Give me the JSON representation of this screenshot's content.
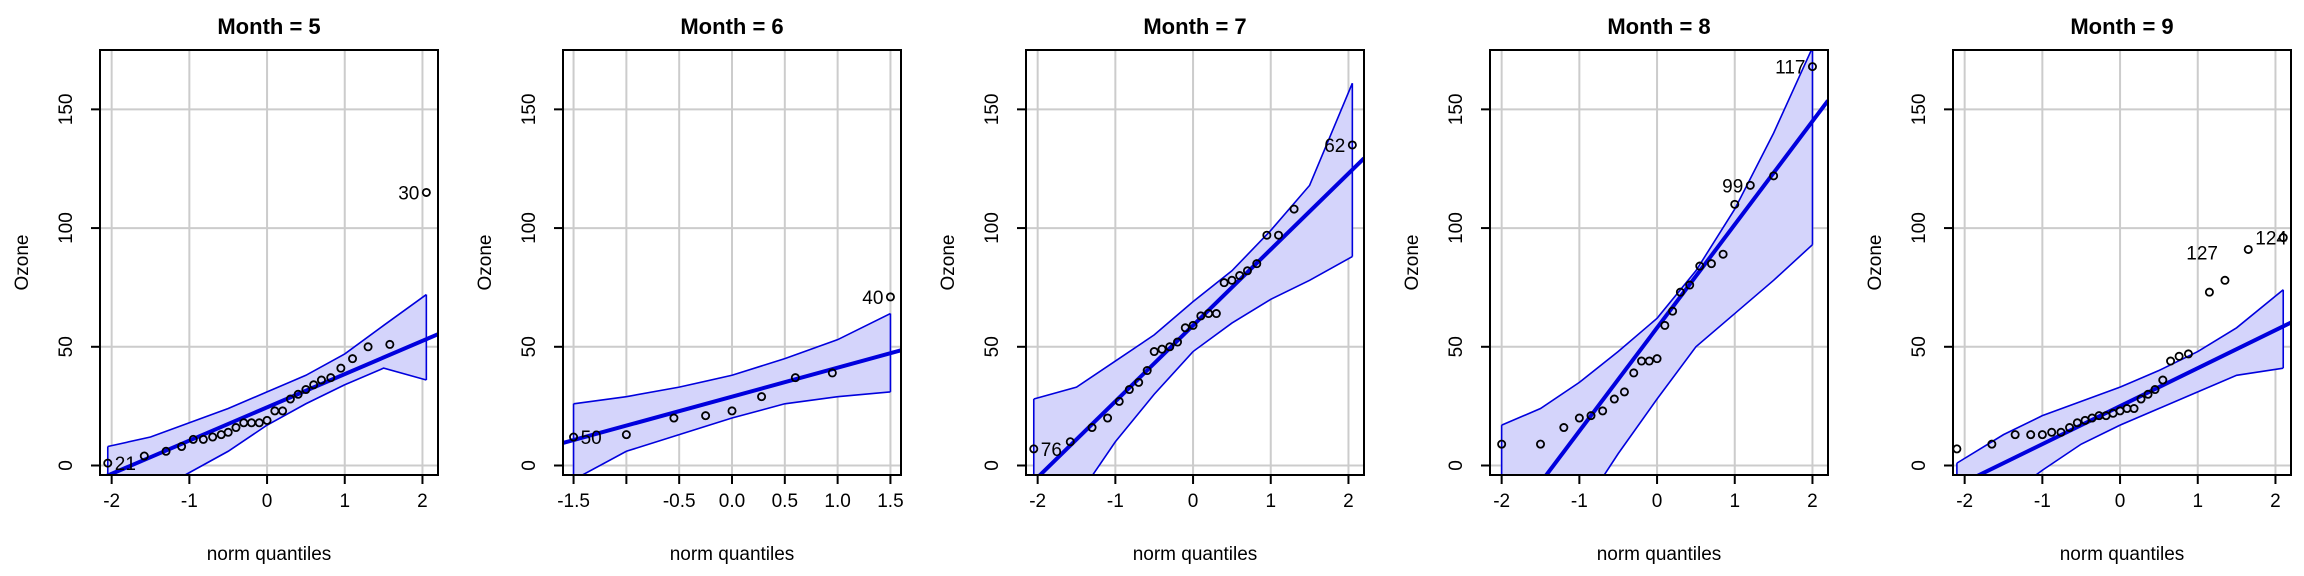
{
  "figure": {
    "ylabel": "Ozone",
    "xlabel": "norm quantiles",
    "colors": {
      "line": "#0000dd",
      "band_fill": "#d4d4fb",
      "band_edge": "#0000dd",
      "grid": "#cccccc",
      "points": "#000000"
    }
  },
  "chart_data": [
    {
      "type": "scatter",
      "title": "Month = 5",
      "xlabel": "norm quantiles",
      "ylabel": "Ozone",
      "xlim": [
        -2.15,
        2.2
      ],
      "ylim": [
        -4,
        175
      ],
      "xticks": [
        -2,
        -1,
        0,
        1,
        2
      ],
      "xtick_labels": [
        "-2",
        "-1",
        "0",
        "1",
        "2"
      ],
      "yticks": [
        0,
        50,
        100,
        150
      ],
      "ytick_labels": [
        "0",
        "50",
        "100",
        "150"
      ],
      "grid": true,
      "points": [
        [
          -2.05,
          1
        ],
        [
          -1.58,
          4
        ],
        [
          -1.3,
          6
        ],
        [
          -1.1,
          8
        ],
        [
          -0.95,
          11
        ],
        [
          -0.82,
          11
        ],
        [
          -0.7,
          12
        ],
        [
          -0.59,
          13
        ],
        [
          -0.5,
          14
        ],
        [
          -0.4,
          16
        ],
        [
          -0.3,
          18
        ],
        [
          -0.2,
          18
        ],
        [
          -0.1,
          18
        ],
        [
          0.0,
          19
        ],
        [
          0.1,
          23
        ],
        [
          0.2,
          23
        ],
        [
          0.3,
          28
        ],
        [
          0.4,
          30
        ],
        [
          0.5,
          32
        ],
        [
          0.6,
          34
        ],
        [
          0.7,
          36
        ],
        [
          0.82,
          37
        ],
        [
          0.95,
          41
        ],
        [
          1.1,
          45
        ],
        [
          1.3,
          50
        ],
        [
          1.58,
          51
        ],
        [
          2.05,
          115
        ]
      ],
      "labeled_points": [
        {
          "x": -2.05,
          "y": 1,
          "label": "21",
          "side": "right"
        },
        {
          "x": 2.05,
          "y": 115,
          "label": "30",
          "side": "left"
        }
      ],
      "fit_line": {
        "slope": 14.0,
        "intercept": 24.5
      },
      "band_x": [
        -2.05,
        -1.5,
        -1.0,
        -0.5,
        0.0,
        0.5,
        1.0,
        1.5,
        2.05
      ],
      "band_upper": [
        8,
        12,
        18,
        24,
        31,
        38,
        47,
        59,
        72
      ],
      "band_lower": [
        -25,
        -12,
        -3,
        6,
        17,
        26,
        34,
        41,
        36
      ]
    },
    {
      "type": "scatter",
      "title": "Month = 6",
      "xlabel": "norm quantiles",
      "ylabel": "Ozone",
      "xlim": [
        -1.6,
        1.6
      ],
      "ylim": [
        -4,
        175
      ],
      "xticks": [
        -1.5,
        -1.0,
        -0.5,
        0.0,
        0.5,
        1.0,
        1.5
      ],
      "xtick_labels": [
        "-1.5",
        "",
        "-0.5",
        "0.0",
        "0.5",
        "1.0",
        "1.5"
      ],
      "yticks": [
        0,
        50,
        100,
        150
      ],
      "ytick_labels": [
        "0",
        "50",
        "100",
        "150"
      ],
      "grid": true,
      "points": [
        [
          -1.5,
          12
        ],
        [
          -1.0,
          13
        ],
        [
          -0.55,
          20
        ],
        [
          -0.25,
          21
        ],
        [
          0.0,
          23
        ],
        [
          0.28,
          29
        ],
        [
          0.6,
          37
        ],
        [
          0.95,
          39
        ],
        [
          1.5,
          71
        ]
      ],
      "labeled_points": [
        {
          "x": -1.5,
          "y": 12,
          "label": "50",
          "side": "right"
        },
        {
          "x": 1.5,
          "y": 71,
          "label": "40",
          "side": "left"
        }
      ],
      "fit_line": {
        "slope": 12.2,
        "intercept": 29
      },
      "band_x": [
        -1.5,
        -1.0,
        -0.5,
        0.0,
        0.5,
        1.0,
        1.5
      ],
      "band_upper": [
        26,
        29,
        33,
        38,
        45,
        53,
        64
      ],
      "band_lower": [
        -6,
        6,
        13,
        20,
        26,
        29,
        31
      ]
    },
    {
      "type": "scatter",
      "title": "Month = 7",
      "xlabel": "norm quantiles",
      "ylabel": "Ozone",
      "xlim": [
        -2.15,
        2.2
      ],
      "ylim": [
        -4,
        175
      ],
      "xticks": [
        -2,
        -1,
        0,
        1,
        2
      ],
      "xtick_labels": [
        "-2",
        "-1",
        "0",
        "1",
        "2"
      ],
      "yticks": [
        0,
        50,
        100,
        150
      ],
      "ytick_labels": [
        "0",
        "50",
        "100",
        "150"
      ],
      "grid": true,
      "points": [
        [
          -2.05,
          7
        ],
        [
          -1.58,
          10
        ],
        [
          -1.3,
          16
        ],
        [
          -1.1,
          20
        ],
        [
          -0.95,
          27
        ],
        [
          -0.82,
          32
        ],
        [
          -0.7,
          35
        ],
        [
          -0.59,
          40
        ],
        [
          -0.5,
          48
        ],
        [
          -0.4,
          49
        ],
        [
          -0.3,
          50
        ],
        [
          -0.2,
          52
        ],
        [
          -0.1,
          58
        ],
        [
          0.0,
          59
        ],
        [
          0.1,
          63
        ],
        [
          0.2,
          64
        ],
        [
          0.3,
          64
        ],
        [
          0.4,
          77
        ],
        [
          0.5,
          78
        ],
        [
          0.6,
          80
        ],
        [
          0.7,
          82
        ],
        [
          0.82,
          85
        ],
        [
          0.95,
          97
        ],
        [
          1.1,
          97
        ],
        [
          1.3,
          108
        ],
        [
          2.05,
          135
        ]
      ],
      "labeled_points": [
        {
          "x": -2.05,
          "y": 7,
          "label": "76",
          "side": "right"
        },
        {
          "x": 2.05,
          "y": 135,
          "label": "62",
          "side": "left"
        }
      ],
      "fit_line": {
        "slope": 32.0,
        "intercept": 59
      },
      "band_x": [
        -2.05,
        -1.5,
        -1.0,
        -0.5,
        0.0,
        0.5,
        1.0,
        1.5,
        2.05
      ],
      "band_upper": [
        28,
        33,
        44,
        55,
        69,
        82,
        99,
        118,
        161
      ],
      "band_lower": [
        -35,
        -14,
        10,
        30,
        48,
        60,
        70,
        78,
        88
      ]
    },
    {
      "type": "scatter",
      "title": "Month = 8",
      "xlabel": "norm quantiles",
      "ylabel": "Ozone",
      "xlim": [
        -2.15,
        2.2
      ],
      "ylim": [
        -4,
        175
      ],
      "xticks": [
        -2,
        -1,
        0,
        1,
        2
      ],
      "xtick_labels": [
        "-2",
        "-1",
        "0",
        "1",
        "2"
      ],
      "yticks": [
        0,
        50,
        100,
        150
      ],
      "ytick_labels": [
        "0",
        "50",
        "100",
        "150"
      ],
      "grid": true,
      "points": [
        [
          -2.0,
          9
        ],
        [
          -1.5,
          9
        ],
        [
          -1.2,
          16
        ],
        [
          -1.0,
          20
        ],
        [
          -0.85,
          21
        ],
        [
          -0.7,
          23
        ],
        [
          -0.55,
          28
        ],
        [
          -0.42,
          31
        ],
        [
          -0.3,
          39
        ],
        [
          -0.2,
          44
        ],
        [
          -0.1,
          44
        ],
        [
          0.0,
          45
        ],
        [
          0.1,
          59
        ],
        [
          0.2,
          65
        ],
        [
          0.3,
          73
        ],
        [
          0.42,
          76
        ],
        [
          0.55,
          84
        ],
        [
          0.7,
          85
        ],
        [
          0.85,
          89
        ],
        [
          1.0,
          110
        ],
        [
          1.2,
          118
        ],
        [
          1.5,
          122
        ],
        [
          2.0,
          168
        ]
      ],
      "labeled_points": [
        {
          "x": 1.2,
          "y": 118,
          "label": "99",
          "side": "left"
        },
        {
          "x": 2.0,
          "y": 168,
          "label": "117",
          "side": "left"
        }
      ],
      "fit_line": {
        "slope": 43.5,
        "intercept": 58
      },
      "band_x": [
        -2.0,
        -1.5,
        -1.0,
        -0.5,
        0.0,
        0.5,
        1.0,
        1.5,
        2.0
      ],
      "band_upper": [
        17,
        24,
        35,
        48,
        62,
        82,
        108,
        140,
        176
      ],
      "band_lower": [
        -55,
        -37,
        -20,
        5,
        28,
        50,
        64,
        78,
        93
      ]
    },
    {
      "type": "scatter",
      "title": "Month = 9",
      "xlabel": "norm quantiles",
      "ylabel": "Ozone",
      "xlim": [
        -2.15,
        2.2
      ],
      "ylim": [
        -4,
        175
      ],
      "xticks": [
        -2,
        -1,
        0,
        1,
        2
      ],
      "xtick_labels": [
        "-2",
        "-1",
        "0",
        "1",
        "2"
      ],
      "yticks": [
        0,
        50,
        100,
        150
      ],
      "ytick_labels": [
        "0",
        "50",
        "100",
        "150"
      ],
      "grid": true,
      "points": [
        [
          -2.1,
          7
        ],
        [
          -1.65,
          9
        ],
        [
          -1.35,
          13
        ],
        [
          -1.15,
          13
        ],
        [
          -1.0,
          13
        ],
        [
          -0.88,
          14
        ],
        [
          -0.76,
          14
        ],
        [
          -0.65,
          16
        ],
        [
          -0.55,
          18
        ],
        [
          -0.45,
          19
        ],
        [
          -0.36,
          20
        ],
        [
          -0.27,
          21
        ],
        [
          -0.18,
          21
        ],
        [
          -0.09,
          22
        ],
        [
          0.0,
          23
        ],
        [
          0.09,
          24
        ],
        [
          0.18,
          24
        ],
        [
          0.27,
          28
        ],
        [
          0.36,
          30
        ],
        [
          0.45,
          32
        ],
        [
          0.55,
          36
        ],
        [
          0.65,
          44
        ],
        [
          0.76,
          46
        ],
        [
          0.88,
          47
        ],
        [
          1.15,
          73
        ],
        [
          1.35,
          78
        ],
        [
          1.65,
          91
        ],
        [
          2.1,
          96
        ]
      ],
      "labeled_points": [
        {
          "x": 1.35,
          "y": 78,
          "label": "127",
          "side": "left",
          "dy": -28
        },
        {
          "x": 1.65,
          "y": 91,
          "label": "124",
          "side": "right",
          "dy": -12
        }
      ],
      "fit_line": {
        "slope": 16.0,
        "intercept": 25
      },
      "band_x": [
        -2.1,
        -1.5,
        -1.0,
        -0.5,
        0.0,
        0.5,
        1.0,
        1.5,
        2.1
      ],
      "band_upper": [
        1,
        13,
        21,
        27,
        33,
        40,
        48,
        58,
        74
      ],
      "band_lower": [
        -30,
        -14,
        -2,
        9,
        17,
        24,
        31,
        38,
        41
      ]
    }
  ]
}
